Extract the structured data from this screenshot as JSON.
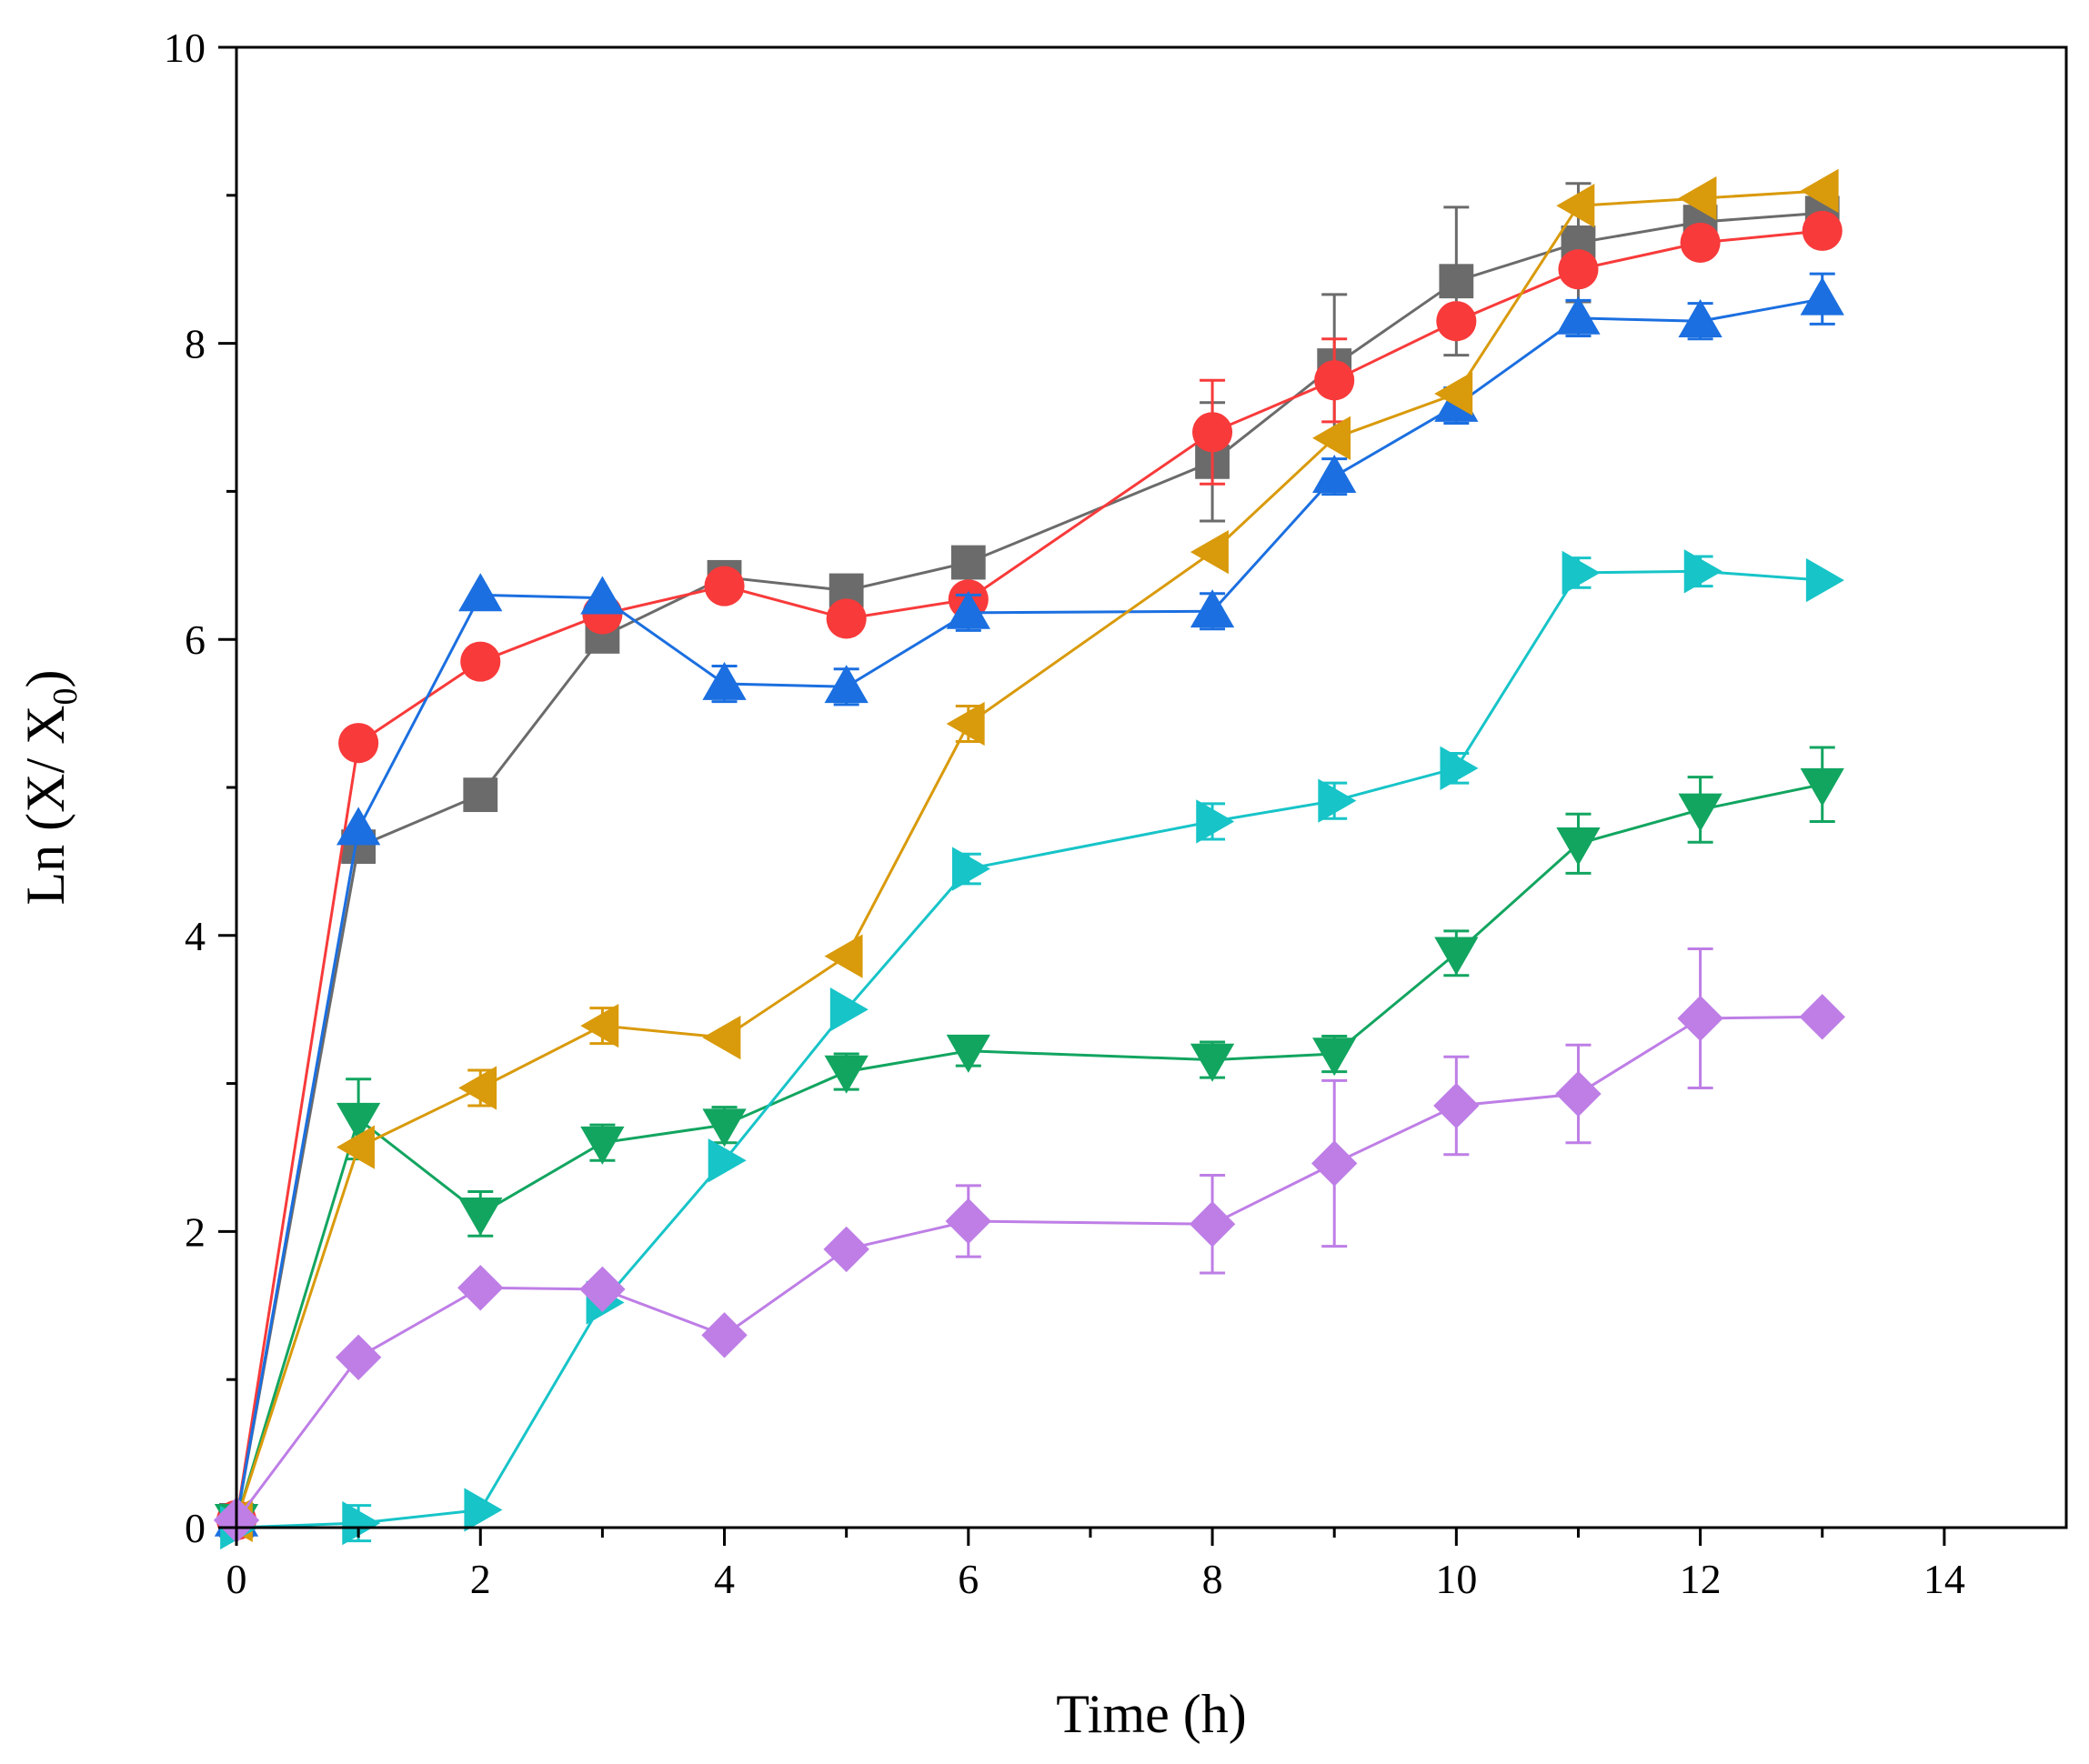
{
  "chart_data": {
    "type": "line",
    "title": "",
    "xlabel": "Time (h)",
    "ylabel_main": "Ln (X/ X",
    "ylabel_sub": "0",
    "ylabel_close": ")",
    "xlim": [
      0,
      15
    ],
    "ylim": [
      0,
      10
    ],
    "xticks": [
      0,
      2,
      4,
      6,
      8,
      10,
      12,
      14
    ],
    "yticks": [
      0,
      2,
      4,
      6,
      8,
      10
    ],
    "xtick_labels": [
      "0",
      "2",
      "4",
      "6",
      "8",
      "10",
      "12",
      "14"
    ],
    "ytick_labels": [
      "0",
      "2",
      "4",
      "6",
      "8",
      "10"
    ],
    "grid": false,
    "legend": "none",
    "series": [
      {
        "name": "series-gray-square",
        "marker": "square",
        "color": "#6b6b6b",
        "x": [
          0,
          1,
          2,
          3,
          4,
          5,
          6,
          8,
          9,
          10,
          11,
          12,
          13
        ],
        "y": [
          0.05,
          4.6,
          4.95,
          6.02,
          6.42,
          6.33,
          6.52,
          7.2,
          7.85,
          8.42,
          8.68,
          8.82,
          8.88
        ],
        "err": [
          0,
          0,
          0,
          0,
          0,
          0,
          0,
          0.4,
          0.48,
          0.5,
          0.4,
          0,
          0
        ]
      },
      {
        "name": "series-red-circle",
        "marker": "circle",
        "color": "#f83a3a",
        "x": [
          0,
          1,
          2,
          3,
          4,
          5,
          6,
          8,
          9,
          10,
          11,
          12,
          13
        ],
        "y": [
          0.05,
          5.3,
          5.85,
          6.17,
          6.36,
          6.14,
          6.27,
          7.4,
          7.75,
          8.15,
          8.5,
          8.68,
          8.76
        ],
        "err": [
          0,
          0,
          0,
          0,
          0,
          0,
          0,
          0.35,
          0.28,
          0,
          0,
          0,
          0
        ]
      },
      {
        "name": "series-blue-triangle-up",
        "marker": "triangle-up",
        "color": "#1b6fe0",
        "x": [
          0,
          1,
          2,
          3,
          4,
          5,
          6,
          8,
          9,
          10,
          11,
          12,
          13
        ],
        "y": [
          0.05,
          4.72,
          6.3,
          6.28,
          5.7,
          5.68,
          6.18,
          6.19,
          7.1,
          7.58,
          8.17,
          8.15,
          8.3
        ],
        "err": [
          0,
          0,
          0,
          0,
          0.12,
          0.12,
          0.12,
          0.12,
          0.12,
          0.12,
          0.12,
          0.12,
          0.17
        ]
      },
      {
        "name": "series-green-triangle-down",
        "marker": "triangle-down",
        "color": "#12a560",
        "x": [
          0,
          1,
          2,
          3,
          4,
          5,
          6,
          8,
          9,
          10,
          11,
          12,
          13
        ],
        "y": [
          0.05,
          2.76,
          2.12,
          2.6,
          2.72,
          3.08,
          3.22,
          3.16,
          3.2,
          3.88,
          4.62,
          4.85,
          5.02
        ],
        "err": [
          0,
          0.27,
          0.15,
          0.12,
          0.12,
          0.12,
          0.1,
          0.12,
          0.12,
          0.15,
          0.2,
          0.22,
          0.25
        ]
      },
      {
        "name": "series-orange-triangle-left",
        "marker": "triangle-left",
        "color": "#d99a0b",
        "x": [
          0,
          1,
          2,
          3,
          4,
          5,
          6,
          8,
          9,
          10,
          11,
          12,
          13
        ],
        "y": [
          0.05,
          2.57,
          2.97,
          3.39,
          3.31,
          3.86,
          5.43,
          6.59,
          7.36,
          7.66,
          8.93,
          8.98,
          9.03
        ],
        "err": [
          0,
          0,
          0.12,
          0.12,
          0,
          0,
          0.12,
          0,
          0,
          0,
          0,
          0,
          0
        ]
      },
      {
        "name": "series-cyan-triangle-right",
        "marker": "triangle-right",
        "color": "#17c4c8",
        "x": [
          0,
          1,
          2,
          3,
          4,
          5,
          6,
          8,
          9,
          10,
          11,
          12,
          13
        ],
        "y": [
          0.0,
          0.03,
          0.12,
          1.52,
          2.48,
          3.5,
          4.45,
          4.77,
          4.91,
          5.13,
          6.45,
          6.46,
          6.4
        ],
        "err": [
          0,
          0.12,
          0,
          0,
          0,
          0,
          0.1,
          0.12,
          0.12,
          0.1,
          0.1,
          0.1,
          0
        ]
      },
      {
        "name": "series-purple-diamond",
        "marker": "diamond",
        "color": "#be7ee6",
        "x": [
          0,
          1,
          2,
          3,
          4,
          5,
          6,
          8,
          9,
          10,
          11,
          12,
          13
        ],
        "y": [
          0.05,
          1.15,
          1.62,
          1.61,
          1.3,
          1.88,
          2.07,
          2.05,
          2.46,
          2.85,
          2.93,
          3.44,
          3.45
        ],
        "err": [
          0,
          0,
          0,
          0,
          0,
          0,
          0.24,
          0.33,
          0.56,
          0.33,
          0.33,
          0.47,
          0
        ]
      }
    ]
  }
}
